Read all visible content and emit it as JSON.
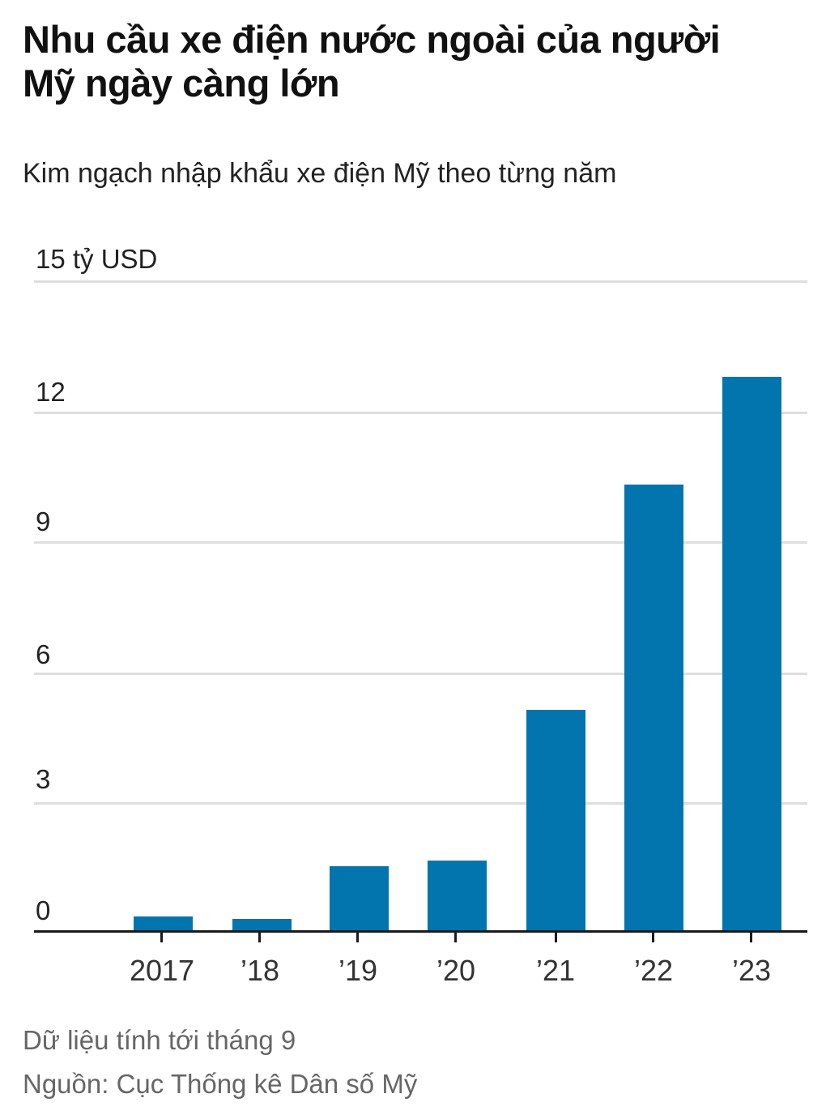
{
  "header": {
    "title": "Nhu cầu xe điện nước ngoài của người Mỹ ngày càng lớn",
    "subtitle": "Kim ngạch nhập khẩu xe điện Mỹ theo từng năm"
  },
  "axis": {
    "y_ticks": [
      {
        "label": "15 tỷ USD",
        "value": 15
      },
      {
        "label": "12",
        "value": 12
      },
      {
        "label": "9",
        "value": 9
      },
      {
        "label": "6",
        "value": 6
      },
      {
        "label": "3",
        "value": 3
      },
      {
        "label": "0",
        "value": 0
      }
    ],
    "x_labels": [
      "2017",
      "’18",
      "’19",
      "’20",
      "’21",
      "’22",
      "’23"
    ]
  },
  "footer": {
    "note": "Dữ liệu tính tới tháng 9",
    "source": "Nguồn: Cục Thống kê Dân số Mỹ"
  },
  "colors": {
    "bar": "#0274AE",
    "grid": "#DEDEDE",
    "axis": "#1A1A1A"
  },
  "chart_data": {
    "type": "bar",
    "title": "Nhu cầu xe điện nước ngoài của người Mỹ ngày càng lớn",
    "subtitle": "Kim ngạch nhập khẩu xe điện Mỹ theo từng năm",
    "categories": [
      "2017",
      "2018",
      "2019",
      "2020",
      "2021",
      "2022",
      "2023"
    ],
    "tick_labels": [
      "2017",
      "’18",
      "’19",
      "’20",
      "’21",
      "’22",
      "’23"
    ],
    "values": [
      0.33,
      0.28,
      1.5,
      1.63,
      5.1,
      10.3,
      12.8
    ],
    "xlabel": "",
    "ylabel": "tỷ USD",
    "ylim": [
      0,
      15
    ],
    "yticks": [
      0,
      3,
      6,
      9,
      12,
      15
    ],
    "grid": true,
    "legend": null,
    "annotations": [
      "Dữ liệu tính tới tháng 9",
      "Nguồn: Cục Thống kê Dân số Mỹ"
    ]
  }
}
